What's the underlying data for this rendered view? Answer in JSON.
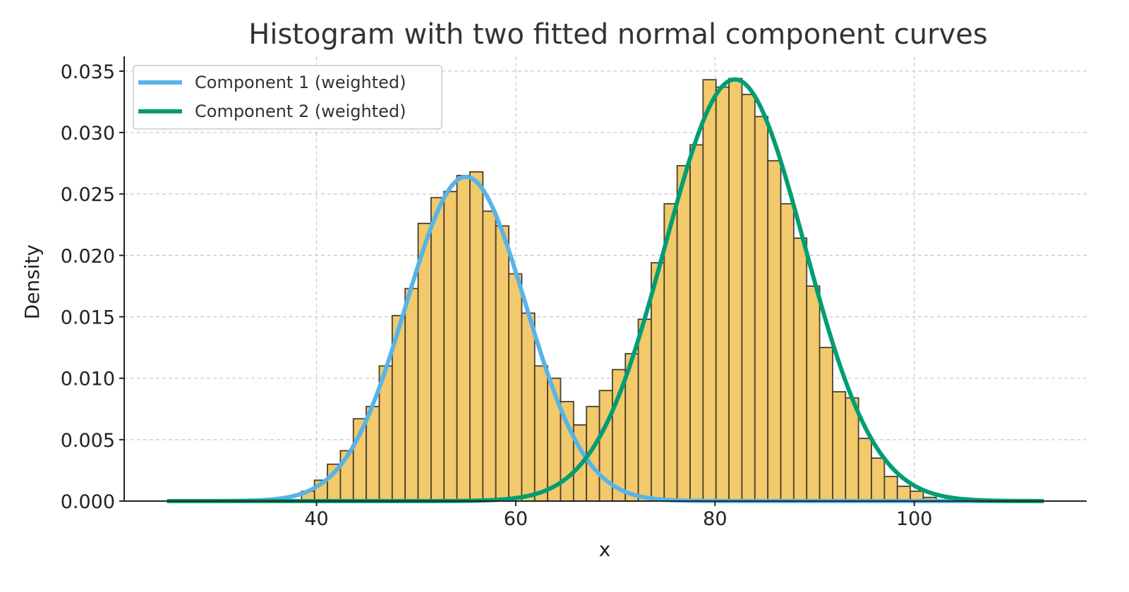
{
  "chart_data": {
    "type": "bar",
    "title": "Histogram with two fitted normal component curves",
    "xlabel": "x",
    "ylabel": "Density",
    "xlim": [
      20.7,
      117.3
    ],
    "ylim": [
      0,
      0.0362
    ],
    "xticks": [
      40,
      60,
      80,
      100
    ],
    "xtick_labels": [
      "40",
      "60",
      "80",
      "100"
    ],
    "yticks": [
      0.0,
      0.005,
      0.01,
      0.015,
      0.02,
      0.025,
      0.03,
      0.035
    ],
    "ytick_labels": [
      "0.000",
      "0.005",
      "0.010",
      "0.015",
      "0.020",
      "0.025",
      "0.030",
      "0.035"
    ],
    "grid": true,
    "legend_position": "top-left",
    "histogram": {
      "bin_start": 38.5,
      "bin_width": 1.3,
      "values": [
        0.0008,
        0.0017,
        0.003,
        0.0041,
        0.0067,
        0.0077,
        0.011,
        0.0151,
        0.0173,
        0.0226,
        0.0247,
        0.0252,
        0.0265,
        0.0268,
        0.0236,
        0.0224,
        0.0185,
        0.0153,
        0.011,
        0.01,
        0.0081,
        0.0062,
        0.0077,
        0.009,
        0.0107,
        0.012,
        0.0148,
        0.0194,
        0.0242,
        0.0273,
        0.029,
        0.0343,
        0.0337,
        0.0344,
        0.0331,
        0.0313,
        0.0277,
        0.0242,
        0.0214,
        0.0175,
        0.0125,
        0.0089,
        0.0084,
        0.0051,
        0.0035,
        0.002,
        0.0012,
        0.0008,
        0.0003
      ],
      "fill": "#F2C96B",
      "edge": "#4a3f2f"
    },
    "series": [
      {
        "name": "Component 1 (weighted)",
        "type": "normal",
        "mean": 55.0,
        "sd": 6.0,
        "weight": 0.397,
        "color": "#56B4E9"
      },
      {
        "name": "Component 2 (weighted)",
        "type": "normal",
        "mean": 82.0,
        "sd": 7.0,
        "weight": 0.6023,
        "color": "#009E73"
      }
    ],
    "curve_x_range": [
      25,
      113
    ]
  }
}
